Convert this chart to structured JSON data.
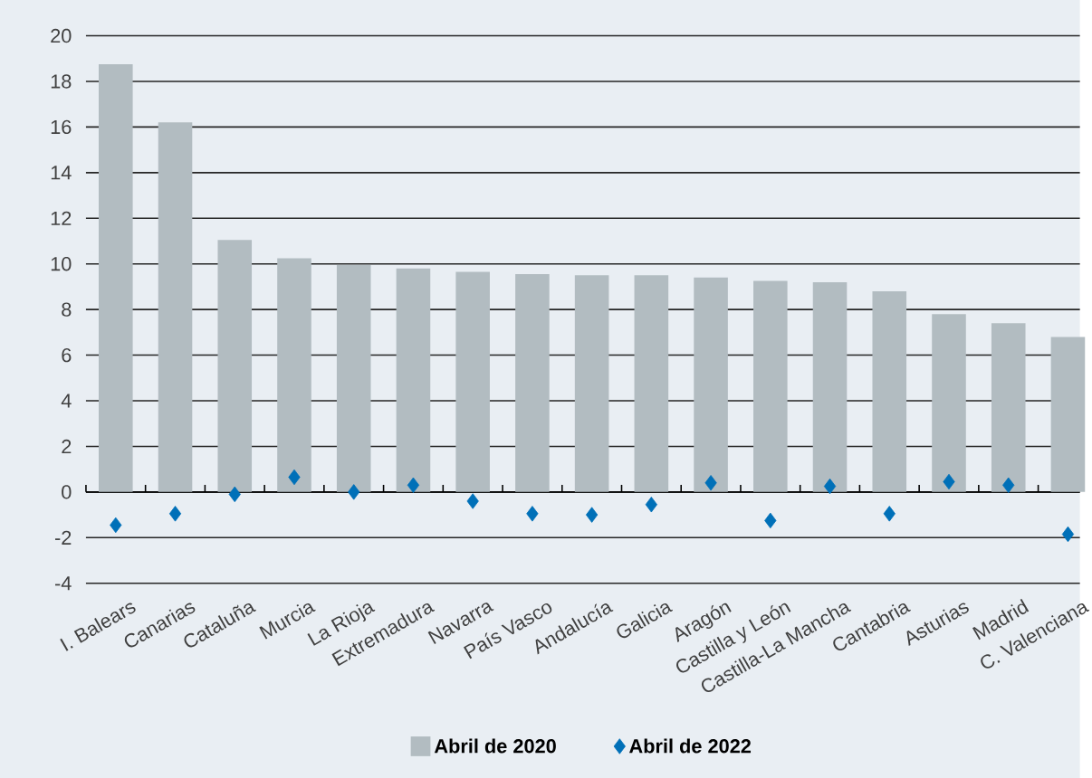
{
  "chart_data": {
    "type": "bar",
    "categories": [
      "I. Balears",
      "Canarias",
      "Cataluña",
      "Murcia",
      "La Rioja",
      "Extremadura",
      "Navarra",
      "País Vasco",
      "Andalucía",
      "Galicia",
      "Aragón",
      "Castilla y León",
      "Castilla-La Mancha",
      "Cantabria",
      "Asturias",
      "Madrid",
      "C. Valenciana"
    ],
    "series": [
      {
        "name": "Abril de 2020",
        "color": "#b2bcc1",
        "values": [
          18.75,
          16.2,
          11.05,
          10.25,
          9.95,
          9.8,
          9.65,
          9.55,
          9.5,
          9.5,
          9.4,
          9.25,
          9.2,
          8.8,
          7.8,
          7.4,
          6.8
        ]
      },
      {
        "name": "Abril de 2022",
        "type": "scatter",
        "marker": "diamond",
        "color": "#0070b8",
        "values": [
          -1.45,
          -0.95,
          -0.1,
          0.65,
          0.0,
          0.3,
          -0.4,
          -0.95,
          -1.0,
          -0.55,
          0.4,
          -1.25,
          0.25,
          -0.95,
          0.45,
          0.3,
          -1.85
        ]
      }
    ],
    "ylim": [
      -4,
      20
    ],
    "yticks": [
      -4,
      -2,
      0,
      2,
      4,
      6,
      8,
      10,
      12,
      14,
      16,
      18,
      20
    ],
    "grid": "y",
    "legend": "bottom"
  }
}
